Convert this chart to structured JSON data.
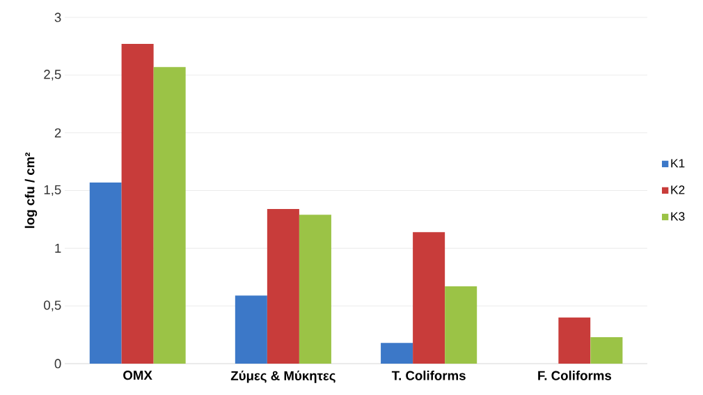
{
  "chart_data": {
    "type": "bar",
    "ylabel": "log cfu / cm²",
    "categories": [
      "ΟΜΧ",
      "Ζύμες & Μύκητες",
      "T. Coliforms",
      "F. Coliforms"
    ],
    "series": [
      {
        "name": "K1",
        "color": "#3c78c8",
        "values": [
          1.57,
          0.59,
          0.18,
          0
        ]
      },
      {
        "name": "K2",
        "color": "#c83c3a",
        "values": [
          2.77,
          1.34,
          1.14,
          0.4
        ]
      },
      {
        "name": "K3",
        "color": "#9bc346",
        "values": [
          2.57,
          1.29,
          0.67,
          0.23
        ]
      }
    ],
    "ylim": [
      0,
      3
    ],
    "yticks": [
      0,
      {
        "value": 0.5,
        "label": "0,5"
      },
      1,
      {
        "value": 1.5,
        "label": "1,5"
      },
      2,
      {
        "value": 2.5,
        "label": "2,5"
      },
      3
    ],
    "grid": "y",
    "legend": "right"
  }
}
